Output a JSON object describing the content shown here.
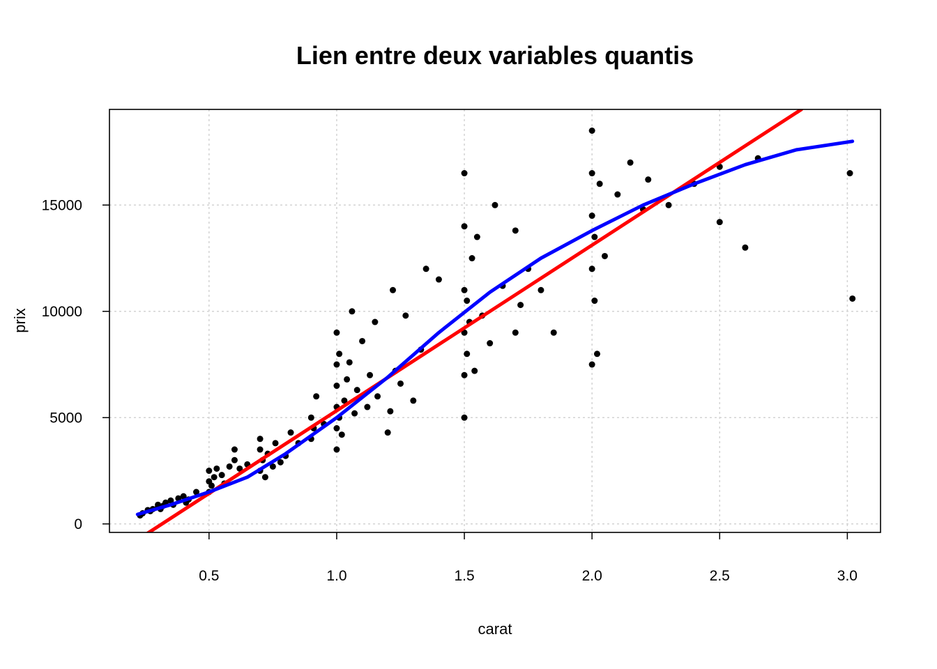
{
  "chart_data": {
    "type": "scatter",
    "title": "Lien entre deux variables quantis",
    "xlabel": "carat",
    "ylabel": "prix",
    "xlim": [
      0.11,
      3.13
    ],
    "ylim": [
      -400,
      19500
    ],
    "xticks": [
      0.5,
      1.0,
      1.5,
      2.0,
      2.5,
      3.0
    ],
    "xtick_labels": [
      "0.5",
      "1.0",
      "1.5",
      "2.0",
      "2.5",
      "3.0"
    ],
    "yticks": [
      0,
      5000,
      10000,
      15000
    ],
    "ytick_labels": [
      "0",
      "5000",
      "10000",
      "15000"
    ],
    "grid": true,
    "legend": "none",
    "series": [
      {
        "kind": "points",
        "color": "#000000",
        "x": [
          0.23,
          0.24,
          0.26,
          0.27,
          0.28,
          0.3,
          0.3,
          0.31,
          0.32,
          0.33,
          0.35,
          0.36,
          0.38,
          0.4,
          0.41,
          0.42,
          0.45,
          0.5,
          0.5,
          0.5,
          0.51,
          0.52,
          0.53,
          0.55,
          0.56,
          0.58,
          0.6,
          0.6,
          0.62,
          0.65,
          0.7,
          0.7,
          0.7,
          0.71,
          0.72,
          0.73,
          0.75,
          0.76,
          0.78,
          0.8,
          0.82,
          0.85,
          0.9,
          0.9,
          0.91,
          0.92,
          0.95,
          1.0,
          1.0,
          1.0,
          1.0,
          1.0,
          1.0,
          1.01,
          1.01,
          1.02,
          1.03,
          1.04,
          1.05,
          1.06,
          1.07,
          1.08,
          1.1,
          1.12,
          1.13,
          1.15,
          1.16,
          1.2,
          1.21,
          1.22,
          1.23,
          1.25,
          1.27,
          1.3,
          1.33,
          1.35,
          1.4,
          1.5,
          1.5,
          1.5,
          1.5,
          1.5,
          1.5,
          1.51,
          1.51,
          1.52,
          1.53,
          1.54,
          1.55,
          1.57,
          1.6,
          1.62,
          1.65,
          1.7,
          1.7,
          1.72,
          1.75,
          1.8,
          1.85,
          2.0,
          2.0,
          2.0,
          2.0,
          2.0,
          2.01,
          2.01,
          2.02,
          2.03,
          2.05,
          2.1,
          2.15,
          2.2,
          2.22,
          2.3,
          2.4,
          2.5,
          2.5,
          2.6,
          2.65,
          3.01,
          3.02
        ],
        "y": [
          400,
          500,
          650,
          600,
          700,
          800,
          900,
          700,
          850,
          1000,
          1100,
          900,
          1200,
          1300,
          1000,
          1150,
          1500,
          1500,
          2000,
          2500,
          1800,
          2200,
          2600,
          2300,
          1900,
          2700,
          3000,
          3500,
          2600,
          2800,
          2500,
          3500,
          4000,
          3000,
          2200,
          3300,
          2700,
          3800,
          2900,
          3200,
          4300,
          3800,
          4000,
          5000,
          4500,
          6000,
          4700,
          3500,
          4500,
          5500,
          6500,
          7500,
          9000,
          5000,
          8000,
          4200,
          5800,
          6800,
          7600,
          10000,
          5200,
          6300,
          8600,
          5500,
          7000,
          9500,
          6000,
          4300,
          5300,
          11000,
          7200,
          6600,
          9800,
          5800,
          8200,
          12000,
          11500,
          5000,
          7000,
          9000,
          11000,
          14000,
          16500,
          8000,
          10500,
          9500,
          12500,
          7200,
          13500,
          9800,
          8500,
          15000,
          11200,
          9000,
          13800,
          10300,
          12000,
          11000,
          9000,
          7500,
          12000,
          14500,
          16500,
          18500,
          10500,
          13500,
          8000,
          16000,
          12600,
          15500,
          17000,
          14800,
          16200,
          15000,
          16000,
          14200,
          16800,
          13000,
          17200,
          16500,
          10600
        ]
      },
      {
        "kind": "line",
        "name": "",
        "color": "#ff0000",
        "x": [
          0.2,
          2.82
        ],
        "y": [
          -900,
          19500
        ]
      },
      {
        "kind": "line",
        "name": "",
        "color": "#0000ff",
        "x": [
          0.22,
          0.35,
          0.5,
          0.65,
          0.8,
          1.0,
          1.2,
          1.4,
          1.6,
          1.8,
          2.0,
          2.2,
          2.4,
          2.6,
          2.8,
          3.02
        ],
        "y": [
          450,
          900,
          1500,
          2200,
          3300,
          5000,
          6900,
          9000,
          10900,
          12500,
          13800,
          15000,
          16000,
          16900,
          17600,
          18000
        ]
      }
    ]
  }
}
